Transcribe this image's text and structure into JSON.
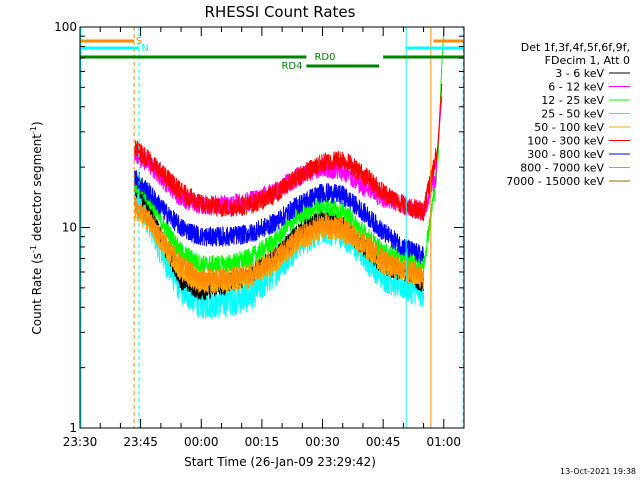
{
  "chart_data": {
    "type": "line",
    "title": "RHESSI Count Rates",
    "xlabel": "Start Time (26-Jan-09 23:29:42)",
    "ylabel": "Count Rate (s",
    "ylabel_sup": "-1",
    "ylabel_mid": " detector segment",
    "ylabel_sup2": "-1",
    "ylabel_end": ")",
    "yscale": "log",
    "ylim": [
      1,
      100
    ],
    "y_ticks": [
      "1",
      "10",
      "100"
    ],
    "xlim_minutes": [
      0,
      95
    ],
    "x_ticks": [
      {
        "label": "23:30",
        "minute": 0
      },
      {
        "label": "23:45",
        "minute": 15
      },
      {
        "label": "00:00",
        "minute": 30
      },
      {
        "label": "00:15",
        "minute": 45
      },
      {
        "label": "00:30",
        "minute": 60
      },
      {
        "label": "00:45",
        "minute": 75
      },
      {
        "label": "01:00",
        "minute": 90
      }
    ],
    "legend_header": [
      "Det 1f,3f,4f,5f,6f,9f,",
      "FDecim 1, Att 0"
    ],
    "legend_placement": "right",
    "series": [
      {
        "name": "3 - 6 keV",
        "color": "#000000",
        "points": [
          [
            13.5,
            16
          ],
          [
            17,
            13
          ],
          [
            21,
            8
          ],
          [
            25,
            5.5
          ],
          [
            30,
            4.8
          ],
          [
            36,
            5.2
          ],
          [
            42,
            5.8
          ],
          [
            48,
            7
          ],
          [
            54,
            9.5
          ],
          [
            60,
            11
          ],
          [
            65,
            10.2
          ],
          [
            70,
            8
          ],
          [
            75,
            6.5
          ],
          [
            80,
            6
          ],
          [
            85,
            5.3
          ]
        ]
      },
      {
        "name": "6 - 12 keV",
        "color": "#ff00ff",
        "points": [
          [
            13.5,
            23
          ],
          [
            17,
            21
          ],
          [
            21,
            17
          ],
          [
            25,
            14
          ],
          [
            30,
            13
          ],
          [
            36,
            13
          ],
          [
            42,
            13.5
          ],
          [
            48,
            15
          ],
          [
            54,
            18
          ],
          [
            60,
            20
          ],
          [
            65,
            19
          ],
          [
            70,
            16
          ],
          [
            75,
            14
          ],
          [
            80,
            13
          ],
          [
            85,
            12
          ],
          [
            88,
            18
          ],
          [
            89.5,
            45
          ]
        ]
      },
      {
        "name": "12 - 25 keV",
        "color": "#00ff00",
        "points": [
          [
            13.5,
            17
          ],
          [
            17,
            14
          ],
          [
            21,
            10
          ],
          [
            25,
            7.5
          ],
          [
            30,
            6.5
          ],
          [
            36,
            6.5
          ],
          [
            42,
            7
          ],
          [
            48,
            8.5
          ],
          [
            54,
            11.5
          ],
          [
            60,
            13
          ],
          [
            65,
            12
          ],
          [
            70,
            9.5
          ],
          [
            75,
            7.5
          ],
          [
            80,
            7
          ],
          [
            85,
            6.5
          ],
          [
            88.5,
            20
          ],
          [
            89.5,
            65
          ],
          [
            90,
            95
          ]
        ]
      },
      {
        "name": "25 - 50 keV",
        "color": "#00ffff",
        "points": [
          [
            13.5,
            15
          ],
          [
            17,
            11
          ],
          [
            21,
            7
          ],
          [
            25,
            5
          ],
          [
            30,
            4.2
          ],
          [
            36,
            4.3
          ],
          [
            42,
            4.6
          ],
          [
            48,
            6
          ],
          [
            54,
            8.5
          ],
          [
            60,
            10
          ],
          [
            65,
            9.5
          ],
          [
            70,
            7.5
          ],
          [
            75,
            5.8
          ],
          [
            80,
            5.2
          ],
          [
            85,
            4.8
          ]
        ]
      },
      {
        "name": "50 - 100 keV",
        "color": "#ffa500",
        "points": [
          [
            13.5,
            12
          ],
          [
            17,
            10.5
          ],
          [
            21,
            8
          ],
          [
            25,
            6
          ],
          [
            30,
            5.2
          ],
          [
            36,
            5.3
          ],
          [
            42,
            5.5
          ],
          [
            48,
            6.5
          ],
          [
            54,
            8.5
          ],
          [
            60,
            9.8
          ],
          [
            65,
            9.5
          ],
          [
            70,
            8
          ],
          [
            75,
            6.5
          ],
          [
            80,
            6
          ],
          [
            85,
            5.5
          ]
        ]
      },
      {
        "name": "100 - 300 keV",
        "color": "#ff0000",
        "points": [
          [
            13.5,
            25
          ],
          [
            17,
            22
          ],
          [
            21,
            18
          ],
          [
            25,
            15
          ],
          [
            30,
            13
          ],
          [
            36,
            12.5
          ],
          [
            42,
            13
          ],
          [
            48,
            14.5
          ],
          [
            54,
            18
          ],
          [
            60,
            21
          ],
          [
            65,
            22
          ],
          [
            70,
            18.5
          ],
          [
            75,
            15
          ],
          [
            80,
            13
          ],
          [
            85,
            12
          ],
          [
            88.5,
            25
          ],
          [
            89.5,
            52
          ]
        ]
      },
      {
        "name": "300 - 800 keV",
        "color": "#0000ff",
        "points": [
          [
            13.5,
            18
          ],
          [
            17,
            15
          ],
          [
            21,
            12
          ],
          [
            25,
            10
          ],
          [
            30,
            9
          ],
          [
            36,
            9
          ],
          [
            42,
            9.3
          ],
          [
            48,
            10.5
          ],
          [
            54,
            13
          ],
          [
            60,
            15
          ],
          [
            65,
            14.5
          ],
          [
            70,
            12
          ],
          [
            75,
            9.5
          ],
          [
            80,
            8
          ],
          [
            85,
            7.2
          ]
        ]
      },
      {
        "name": "800 - 7000 keV",
        "color": "#ff8c00",
        "points": [
          [
            13.5,
            13
          ],
          [
            17,
            11
          ],
          [
            21,
            8.5
          ],
          [
            25,
            6.5
          ],
          [
            30,
            5.6
          ],
          [
            36,
            5.6
          ],
          [
            42,
            5.9
          ],
          [
            48,
            7
          ],
          [
            54,
            9
          ],
          [
            60,
            10.5
          ],
          [
            65,
            10
          ],
          [
            70,
            8.5
          ],
          [
            75,
            7
          ],
          [
            80,
            6.3
          ],
          [
            85,
            5.8
          ]
        ]
      },
      {
        "name": "7000 - 15000 keV",
        "color": "#996600",
        "points": []
      }
    ],
    "annotations": [
      {
        "text": "S",
        "color": "#ff8c00"
      },
      {
        "text": "N",
        "color": "#00ffff"
      },
      {
        "text": "RD0",
        "color": "#008000"
      },
      {
        "text": "RD4",
        "color": "#008000"
      }
    ],
    "footer_date": "13-Oct-2021 19:38",
    "grid": false
  }
}
